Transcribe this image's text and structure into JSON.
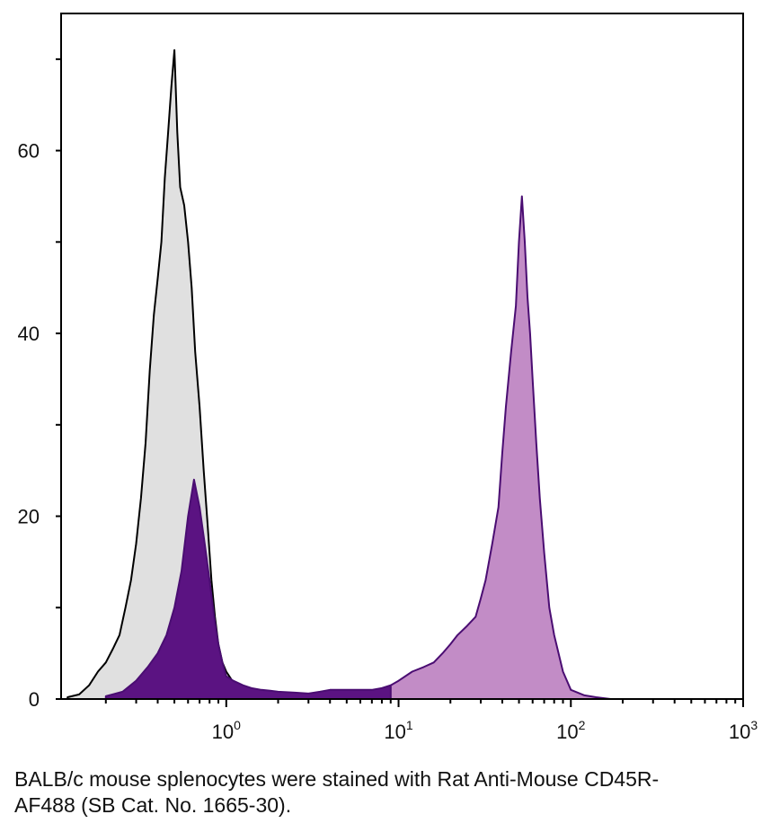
{
  "chart_data": {
    "type": "area",
    "title": "",
    "xlabel": "",
    "ylabel": "",
    "x_scale": "log",
    "xlim": [
      0.11,
      1000
    ],
    "ylim": [
      0,
      75
    ],
    "x_ticks": [
      {
        "value": 1,
        "base": "10",
        "exp": "0"
      },
      {
        "value": 10,
        "base": "10",
        "exp": "1"
      },
      {
        "value": 100,
        "base": "10",
        "exp": "2"
      },
      {
        "value": 1000,
        "base": "10",
        "exp": "3"
      }
    ],
    "y_ticks": [
      {
        "value": 0,
        "label": "0"
      },
      {
        "value": 20,
        "label": "20"
      },
      {
        "value": 40,
        "label": "40"
      },
      {
        "value": 60,
        "label": "60"
      }
    ],
    "grid": false,
    "legend": "none",
    "series": [
      {
        "fill": "#e0e0e0",
        "stroke": "#000000",
        "x": [
          0.12,
          0.14,
          0.16,
          0.18,
          0.2,
          0.22,
          0.24,
          0.26,
          0.28,
          0.3,
          0.32,
          0.34,
          0.36,
          0.38,
          0.4,
          0.42,
          0.44,
          0.46,
          0.48,
          0.5,
          0.52,
          0.54,
          0.57,
          0.6,
          0.63,
          0.66,
          0.7,
          0.74,
          0.78,
          0.82,
          0.86,
          0.9,
          0.95,
          1.0,
          1.1,
          1.2,
          1.35,
          1.5,
          1.7,
          2.0,
          2.5,
          3.0
        ],
        "values": [
          0.2,
          0.5,
          1.5,
          3,
          4,
          5.5,
          7,
          10,
          13,
          17,
          22,
          28,
          36,
          42,
          46,
          50,
          57,
          62,
          67,
          71,
          62,
          56,
          54,
          50,
          45,
          38,
          32,
          25,
          19,
          13,
          9,
          6,
          4,
          3,
          1.8,
          1,
          0.6,
          0.4,
          0.2,
          0.1,
          0.05,
          0
        ]
      },
      {
        "fill": "#5b1382",
        "stroke": "#4a0d72",
        "x": [
          0.2,
          0.25,
          0.3,
          0.35,
          0.4,
          0.45,
          0.5,
          0.55,
          0.6,
          0.65,
          0.7,
          0.75,
          0.8,
          0.85,
          0.9,
          0.95,
          1.0,
          1.1,
          1.25,
          1.4,
          1.6,
          1.8,
          2.0,
          2.5,
          3.0,
          3.5,
          4.0,
          5.0,
          6.0,
          7.0,
          8.0,
          9.0,
          10.0
        ],
        "values": [
          0.3,
          0.8,
          2,
          3.5,
          5,
          7,
          10,
          14,
          20,
          24,
          21,
          17,
          13,
          9,
          6,
          4,
          2.5,
          2,
          1.5,
          1.2,
          1,
          0.9,
          0.8,
          0.7,
          0.6,
          0.8,
          1,
          1,
          1,
          1,
          1.2,
          1.5,
          1.8
        ]
      },
      {
        "fill": "#c28cc6",
        "stroke": "#4a0d72",
        "x": [
          9,
          10,
          12,
          14,
          16,
          18,
          20,
          22,
          25,
          28,
          30,
          32,
          35,
          38,
          40,
          42,
          45,
          48,
          50,
          52,
          54,
          56,
          58,
          60,
          63,
          66,
          70,
          75,
          80,
          90,
          100,
          120,
          140,
          170
        ],
        "values": [
          1.5,
          2,
          3,
          3.5,
          4,
          5,
          6,
          7,
          8,
          9,
          11,
          13,
          17,
          21,
          27,
          32,
          38,
          43,
          50,
          55,
          50,
          44,
          40,
          35,
          28,
          22,
          16,
          10,
          7,
          3,
          1,
          0.4,
          0.2,
          0
        ]
      }
    ],
    "caption": "BALB/c mouse splenocytes were stained with Rat Anti-Mouse CD45R-AF488 (SB Cat. No. 1665-30)."
  }
}
